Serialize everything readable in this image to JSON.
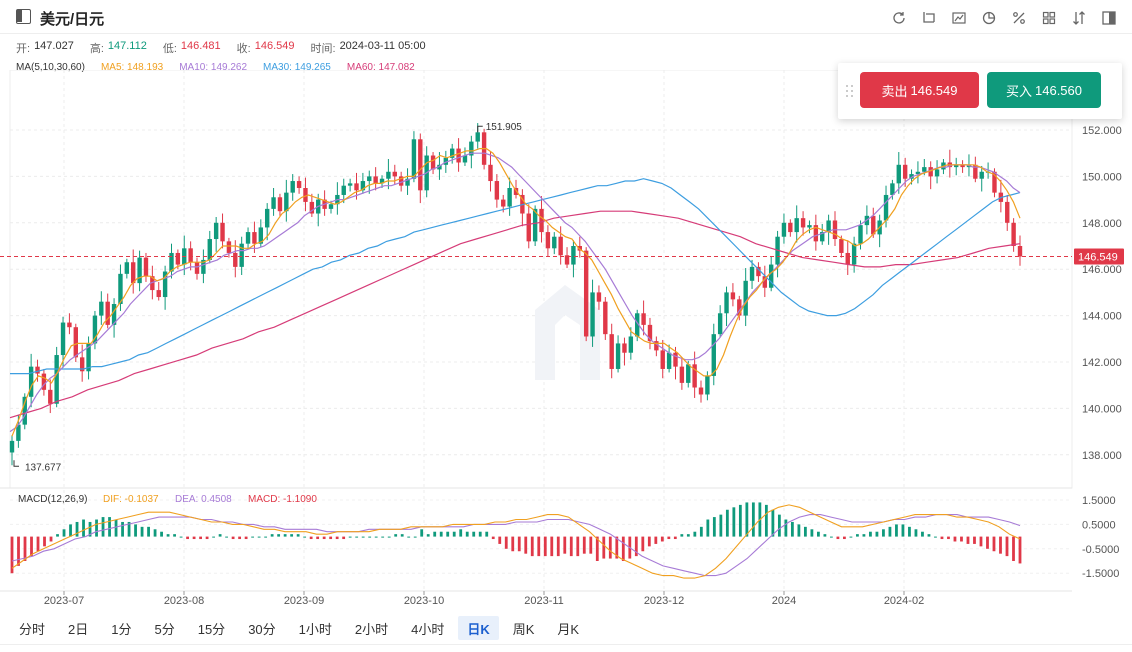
{
  "header": {
    "title": "美元/日元",
    "tools": [
      "refresh-icon",
      "crop-icon",
      "chart-line-icon",
      "pie-icon",
      "percent-icon",
      "grid-icon",
      "sort-icon",
      "layout-icon"
    ]
  },
  "ohlc": {
    "open_label": "开:",
    "open": "147.027",
    "high_label": "高:",
    "high": "147.112",
    "low_label": "低:",
    "low": "146.481",
    "close_label": "收:",
    "close": "146.549",
    "time_label": "时间:",
    "time": "2024-03-11 05:00"
  },
  "ma": {
    "name": "MA(5,10,30,60)",
    "ma5": "MA5: 148.193",
    "ma10": "MA10: 149.262",
    "ma30": "MA30: 149.265",
    "ma60": "MA60: 147.082",
    "colors": {
      "ma5": "#f0a020",
      "ma10": "#a77bd6",
      "ma30": "#3d9ee0",
      "ma60": "#d63c78"
    }
  },
  "trade": {
    "sell_label": "卖出",
    "sell_price": "146.549",
    "buy_label": "买入",
    "buy_price": "146.560"
  },
  "chart_data": {
    "type": "candlestick",
    "price_axis": [
      "152.000",
      "150.000",
      "148.000",
      "146.000",
      "144.000",
      "142.000",
      "140.000",
      "138.000"
    ],
    "current_price": "146.549",
    "annotations": {
      "high": "151.905",
      "low": "137.677"
    },
    "x_labels": [
      "2023-07",
      "2023-08",
      "2023-09",
      "2023-10",
      "2023-11",
      "2023-12",
      "2024",
      "2024-02"
    ],
    "colors": {
      "up": "#0f9a7c",
      "down": "#e03848"
    },
    "closes": [
      138.6,
      139.3,
      140.5,
      141.8,
      141.5,
      140.8,
      140.2,
      142.3,
      143.7,
      143.5,
      142.2,
      141.6,
      142.8,
      144.0,
      144.6,
      143.6,
      144.5,
      145.8,
      146.3,
      145.4,
      146.5,
      145.7,
      145.1,
      144.8,
      145.9,
      146.7,
      146.2,
      146.9,
      146.3,
      145.8,
      146.4,
      147.3,
      148.0,
      147.2,
      146.7,
      146.1,
      147.1,
      147.6,
      147.1,
      147.8,
      148.6,
      149.1,
      148.5,
      149.3,
      149.8,
      149.5,
      148.9,
      148.4,
      149.0,
      148.6,
      148.8,
      149.2,
      149.6,
      149.7,
      149.4,
      149.8,
      150.0,
      149.7,
      149.9,
      150.2,
      150.0,
      149.6,
      149.9,
      151.6,
      149.4,
      150.9,
      150.3,
      150.5,
      150.8,
      151.2,
      150.6,
      150.9,
      151.5,
      151.9,
      150.5,
      149.8,
      149.0,
      148.7,
      149.5,
      149.2,
      148.4,
      147.2,
      148.6,
      147.6,
      146.9,
      147.4,
      146.6,
      146.2,
      147.0,
      146.8,
      143.1,
      145.0,
      144.6,
      143.2,
      141.7,
      142.8,
      142.4,
      143.1,
      144.1,
      143.6,
      142.9,
      142.5,
      141.7,
      142.4,
      141.8,
      141.1,
      141.9,
      140.9,
      140.6,
      141.4,
      143.2,
      144.1,
      145.0,
      144.7,
      144.0,
      145.5,
      146.1,
      145.7,
      145.2,
      146.2,
      147.4,
      148.0,
      147.6,
      148.2,
      147.8,
      147.9,
      147.2,
      147.6,
      148.1,
      147.3,
      146.7,
      146.2,
      147.1,
      147.9,
      148.3,
      147.5,
      148.1,
      149.2,
      149.7,
      150.5,
      149.9,
      150.1,
      150.2,
      150.4,
      150.0,
      150.3,
      150.6,
      150.4,
      150.5,
      150.4,
      150.5,
      149.9,
      150.2,
      150.2,
      149.3,
      148.9,
      148.0,
      147.0,
      146.55
    ],
    "ma5": [
      138.8,
      139.5,
      140.3,
      141.0,
      141.4,
      141.3,
      141.1,
      141.6,
      142.2,
      142.7,
      142.8,
      142.8,
      142.8,
      143.2,
      143.7,
      144.0,
      144.4,
      144.8,
      145.3,
      145.6,
      145.7,
      145.7,
      145.5,
      145.6,
      145.9,
      146.1,
      146.2,
      146.3,
      146.3,
      146.3,
      146.4,
      146.7,
      147.0,
      147.0,
      147.0,
      146.9,
      146.9,
      147.1,
      147.2,
      147.5,
      148.0,
      148.4,
      148.6,
      148.9,
      149.1,
      149.2,
      149.1,
      149.0,
      148.9,
      148.8,
      148.9,
      149.1,
      149.3,
      149.4,
      149.6,
      149.7,
      149.7,
      149.8,
      149.8,
      149.9,
      150.0,
      150.0,
      150.3,
      150.6,
      150.7,
      150.9,
      150.8,
      150.9,
      151.0,
      151.1,
      151.1,
      151.2,
      151.2,
      151.0,
      150.6,
      150.1,
      149.6,
      149.2,
      148.8,
      148.6,
      148.3,
      148.1,
      147.8,
      147.6,
      147.4,
      147.3,
      146.9,
      146.7,
      146.4,
      145.9,
      145.4,
      144.9,
      144.3,
      143.8,
      143.3,
      143.1,
      142.9,
      142.8,
      142.8,
      142.8,
      142.6,
      142.4,
      142.1,
      141.8,
      141.6,
      141.4,
      141.4,
      141.7,
      142.3,
      143.1,
      143.8,
      144.4,
      144.8,
      145.1,
      145.5,
      145.8,
      146.0,
      146.3,
      146.7,
      147.2,
      147.5,
      147.7,
      147.8,
      147.7,
      147.6,
      147.5,
      147.3,
      147.2,
      147.0,
      147.1,
      147.3,
      147.6,
      147.9,
      148.2,
      148.6,
      149.2,
      149.6,
      149.9,
      150.1,
      150.2,
      150.3,
      150.4,
      150.5,
      150.5,
      150.5,
      150.5,
      150.5,
      150.4,
      150.2,
      150.1,
      149.8,
      149.4,
      148.9,
      148.2
    ],
    "ma10": [
      139.0,
      139.2,
      139.6,
      140.1,
      140.6,
      141.0,
      141.3,
      141.5,
      141.8,
      142.1,
      142.3,
      142.5,
      142.7,
      142.9,
      143.2,
      143.5,
      143.8,
      144.1,
      144.5,
      144.8,
      145.1,
      145.4,
      145.5,
      145.6,
      145.7,
      145.9,
      146.0,
      146.1,
      146.1,
      146.2,
      146.3,
      146.4,
      146.6,
      146.7,
      146.8,
      146.8,
      146.9,
      146.9,
      147.0,
      147.2,
      147.4,
      147.6,
      147.8,
      148.0,
      148.3,
      148.5,
      148.7,
      148.8,
      148.9,
      149.0,
      149.0,
      149.1,
      149.2,
      149.3,
      149.4,
      149.5,
      149.6,
      149.6,
      149.7,
      149.8,
      149.9,
      150.0,
      150.1,
      150.3,
      150.4,
      150.6,
      150.7,
      150.8,
      150.9,
      151.0,
      151.0,
      151.0,
      150.9,
      150.8,
      150.6,
      150.4,
      150.1,
      149.8,
      149.5,
      149.2,
      148.9,
      148.6,
      148.3,
      148.0,
      147.8,
      147.5,
      147.2,
      146.8,
      146.4,
      146.0,
      145.5,
      145.0,
      144.5,
      144.0,
      143.6,
      143.2,
      142.9,
      142.7,
      142.5,
      142.3,
      142.2,
      142.1,
      142.1,
      142.2,
      142.4,
      142.7,
      143.0,
      143.4,
      143.8,
      144.2,
      144.6,
      145.0,
      145.3,
      145.6,
      145.9,
      146.2,
      146.5,
      146.8,
      147.0,
      147.2,
      147.4,
      147.5,
      147.6,
      147.7,
      147.7,
      147.7,
      147.8,
      147.9,
      148.1,
      148.3,
      148.6,
      148.9,
      149.2,
      149.5,
      149.8,
      150.0,
      150.1,
      150.2,
      150.3,
      150.4,
      150.4,
      150.5,
      150.5,
      150.5,
      150.4,
      150.4,
      150.3,
      150.2,
      150.0,
      149.8,
      149.5,
      149.3
    ],
    "ma30": [
      141.5,
      141.5,
      141.5,
      141.6,
      141.7,
      141.7,
      141.7,
      141.7,
      141.7,
      141.8,
      141.8,
      141.9,
      142.0,
      142.1,
      142.3,
      142.4,
      142.6,
      142.8,
      143.0,
      143.2,
      143.4,
      143.6,
      143.8,
      144.0,
      144.2,
      144.4,
      144.6,
      144.8,
      145.0,
      145.2,
      145.4,
      145.6,
      145.8,
      146.0,
      146.1,
      146.3,
      146.4,
      146.6,
      146.7,
      146.9,
      147.0,
      147.2,
      147.3,
      147.4,
      147.6,
      147.7,
      147.8,
      147.9,
      148.0,
      148.1,
      148.2,
      148.3,
      148.4,
      148.5,
      148.6,
      148.7,
      148.8,
      148.9,
      149.0,
      149.1,
      149.2,
      149.3,
      149.4,
      149.5,
      149.6,
      149.6,
      149.7,
      149.8,
      149.8,
      149.9,
      149.8,
      149.7,
      149.5,
      149.2,
      148.9,
      148.6,
      148.2,
      147.8,
      147.4,
      147.0,
      146.6,
      146.2,
      145.8,
      145.4,
      145.0,
      144.7,
      144.4,
      144.2,
      144.1,
      144.0,
      144.0,
      144.1,
      144.3,
      144.6,
      144.9,
      145.3,
      145.6,
      145.9,
      146.2,
      146.5,
      146.8,
      147.1,
      147.4,
      147.7,
      148.0,
      148.3,
      148.6,
      148.9,
      149.1,
      149.2,
      149.3
    ],
    "ma60": [
      139.6,
      139.8,
      140.0,
      140.3,
      140.5,
      140.8,
      141.0,
      141.2,
      141.5,
      141.7,
      141.9,
      142.1,
      142.3,
      142.6,
      142.8,
      143.0,
      143.3,
      143.5,
      143.8,
      144.1,
      144.4,
      144.7,
      145.0,
      145.3,
      145.6,
      145.9,
      146.2,
      146.5,
      146.8,
      147.1,
      147.3,
      147.5,
      147.7,
      147.9,
      148.0,
      148.2,
      148.3,
      148.4,
      148.5,
      148.5,
      148.5,
      148.4,
      148.3,
      148.2,
      148.0,
      147.8,
      147.6,
      147.4,
      147.1,
      146.9,
      146.7,
      146.5,
      146.4,
      146.3,
      146.2,
      146.1,
      146.1,
      146.2,
      146.2,
      146.3,
      146.4,
      146.5,
      146.7,
      146.9,
      147.0,
      147.1
    ],
    "macd_axis": [
      "1.5000",
      "0.5000",
      "-0.5000",
      "-1.5000"
    ],
    "macd_label": {
      "name": "MACD(12,26,9)",
      "dif": "DIF: -0.1037",
      "dea": "DEA: 0.4508",
      "macd": "MACD: -1.1090"
    },
    "macd_hist": [
      -1.5,
      -1.2,
      -1.0,
      -0.8,
      -0.6,
      -0.4,
      -0.2,
      0.1,
      0.3,
      0.5,
      0.6,
      0.7,
      0.6,
      0.7,
      0.8,
      0.8,
      0.7,
      0.6,
      0.6,
      0.5,
      0.4,
      0.4,
      0.3,
      0.2,
      0.1,
      0.1,
      0.0,
      -0.1,
      -0.1,
      -0.1,
      -0.1,
      0.0,
      0.1,
      0.0,
      -0.1,
      -0.1,
      -0.1,
      0.0,
      0.0,
      0.0,
      0.1,
      0.1,
      0.1,
      0.1,
      0.1,
      0.0,
      -0.1,
      -0.1,
      -0.1,
      -0.1,
      -0.1,
      -0.1,
      0.0,
      0.0,
      0.0,
      0.0,
      0.0,
      0.0,
      0.0,
      0.1,
      0.1,
      0.0,
      0.0,
      0.3,
      0.1,
      0.2,
      0.2,
      0.2,
      0.2,
      0.3,
      0.2,
      0.2,
      0.2,
      0.2,
      -0.1,
      -0.3,
      -0.5,
      -0.6,
      -0.6,
      -0.7,
      -0.8,
      -0.8,
      -0.8,
      -0.8,
      -0.8,
      -0.7,
      -0.8,
      -0.8,
      -0.7,
      -0.7,
      -1.0,
      -0.9,
      -0.9,
      -0.9,
      -1.0,
      -0.9,
      -0.8,
      -0.6,
      -0.4,
      -0.3,
      -0.2,
      -0.1,
      -0.1,
      0.1,
      0.1,
      0.2,
      0.4,
      0.7,
      0.8,
      0.9,
      1.1,
      1.2,
      1.3,
      1.4,
      1.4,
      1.4,
      1.3,
      1.1,
      0.9,
      0.7,
      0.6,
      0.5,
      0.4,
      0.3,
      0.2,
      0.1,
      0.0,
      -0.1,
      -0.1,
      0.0,
      0.1,
      0.1,
      0.2,
      0.2,
      0.3,
      0.4,
      0.5,
      0.5,
      0.4,
      0.3,
      0.2,
      0.1,
      0.0,
      -0.1,
      -0.1,
      -0.2,
      -0.2,
      -0.3,
      -0.3,
      -0.4,
      -0.5,
      -0.6,
      -0.7,
      -0.8,
      -1.0,
      -1.1
    ],
    "dif": [
      -1.3,
      -1.0,
      -0.7,
      -0.5,
      -0.3,
      -0.1,
      0.1,
      0.3,
      0.5,
      0.6,
      0.7,
      0.8,
      0.9,
      1.0,
      1.0,
      1.0,
      0.9,
      0.8,
      0.7,
      0.6,
      0.6,
      0.5,
      0.5,
      0.4,
      0.3,
      0.3,
      0.2,
      0.2,
      0.2,
      0.1,
      0.1,
      0.2,
      0.2,
      0.2,
      0.2,
      0.3,
      0.3,
      0.3,
      0.4,
      0.4,
      0.4,
      0.4,
      0.5,
      0.5,
      0.5,
      0.5,
      0.6,
      0.6,
      0.7,
      0.7,
      0.8,
      0.9,
      0.9,
      0.8,
      0.5,
      0.2,
      -0.2,
      -0.6,
      -0.9,
      -1.1,
      -1.3,
      -1.5,
      -1.6,
      -1.6,
      -1.7,
      -1.7,
      -1.6,
      -1.3,
      -0.9,
      -0.4,
      0.1,
      0.6,
      1.0,
      1.2,
      1.3,
      1.2,
      1.0,
      0.8,
      0.6,
      0.4,
      0.4,
      0.4,
      0.5,
      0.6,
      0.7,
      0.8,
      0.9,
      0.9,
      0.9,
      0.9,
      0.8,
      0.8,
      0.7,
      0.6,
      0.4,
      0.1,
      -0.1
    ],
    "dea": [
      -1.0,
      -0.9,
      -0.8,
      -0.6,
      -0.5,
      -0.3,
      -0.1,
      0.0,
      0.2,
      0.3,
      0.4,
      0.5,
      0.6,
      0.7,
      0.8,
      0.8,
      0.8,
      0.8,
      0.7,
      0.7,
      0.6,
      0.6,
      0.5,
      0.5,
      0.4,
      0.4,
      0.3,
      0.3,
      0.3,
      0.3,
      0.2,
      0.2,
      0.2,
      0.2,
      0.3,
      0.3,
      0.3,
      0.3,
      0.3,
      0.4,
      0.4,
      0.4,
      0.4,
      0.4,
      0.5,
      0.5,
      0.5,
      0.5,
      0.6,
      0.6,
      0.6,
      0.7,
      0.7,
      0.7,
      0.6,
      0.5,
      0.3,
      0.1,
      -0.2,
      -0.5,
      -0.8,
      -1.0,
      -1.2,
      -1.3,
      -1.4,
      -1.5,
      -1.6,
      -1.6,
      -1.5,
      -1.2,
      -0.9,
      -0.5,
      -0.1,
      0.3,
      0.6,
      0.8,
      0.9,
      0.9,
      0.8,
      0.7,
      0.6,
      0.6,
      0.6,
      0.6,
      0.7,
      0.7,
      0.8,
      0.8,
      0.9,
      0.9,
      0.9,
      0.8,
      0.8,
      0.8,
      0.7,
      0.6,
      0.45
    ]
  },
  "periods": [
    {
      "label": "分时",
      "name": "period-timeshare",
      "active": false
    },
    {
      "label": "2日",
      "name": "period-2d",
      "active": false
    },
    {
      "label": "1分",
      "name": "period-1m",
      "active": false
    },
    {
      "label": "5分",
      "name": "period-5m",
      "active": false
    },
    {
      "label": "15分",
      "name": "period-15m",
      "active": false
    },
    {
      "label": "30分",
      "name": "period-30m",
      "active": false
    },
    {
      "label": "1小时",
      "name": "period-1h",
      "active": false
    },
    {
      "label": "2小时",
      "name": "period-2h",
      "active": false
    },
    {
      "label": "4小时",
      "name": "period-4h",
      "active": false
    },
    {
      "label": "日K",
      "name": "period-daily",
      "active": true
    },
    {
      "label": "周K",
      "name": "period-weekly",
      "active": false
    },
    {
      "label": "月K",
      "name": "period-monthly",
      "active": false
    }
  ]
}
